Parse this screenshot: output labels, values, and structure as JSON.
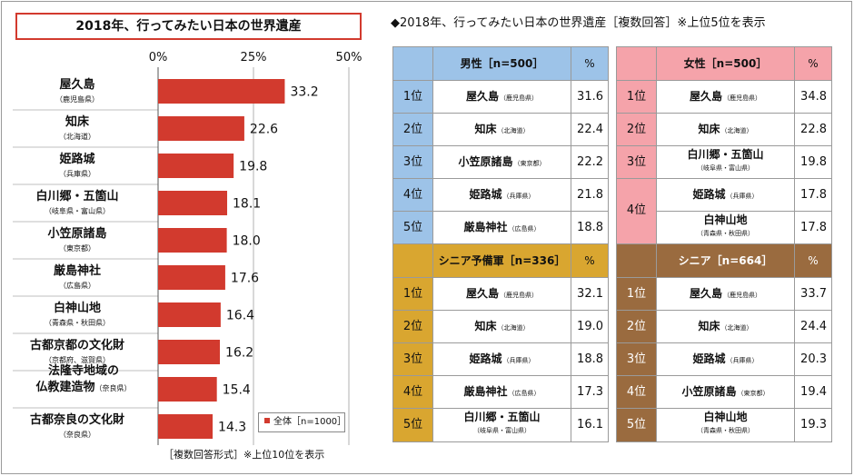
{
  "chart_title": "2018年、行ってみたい日本の世界遺産",
  "chart_note": "［複数回答形式］※上位10位を表示",
  "legend_label": "全体［n=1000］",
  "tables_title": "◆2018年、行ってみたい日本の世界遺産［複数回答］※上位5位を表示",
  "colors": {
    "bar": "#d23a2e",
    "male": "#9dc3e8",
    "female": "#f5a3aa",
    "senior_reserve": "#d9a630",
    "senior": "#9a6b3f"
  },
  "chart_data": {
    "type": "bar",
    "orientation": "horizontal",
    "categories": [
      {
        "name": "屋久島",
        "pref": "（鹿児島県）"
      },
      {
        "name": "知床",
        "pref": "（北海道）"
      },
      {
        "name": "姫路城",
        "pref": "（兵庫県）"
      },
      {
        "name": "白川郷・五箇山",
        "pref": "（岐阜県・富山県）"
      },
      {
        "name": "小笠原諸島",
        "pref": "（東京都）"
      },
      {
        "name": "厳島神社",
        "pref": "（広島県）"
      },
      {
        "name": "白神山地",
        "pref": "（青森県・秋田県）"
      },
      {
        "name": "古都京都の文化財",
        "pref": "（京都府、滋賀県）"
      },
      {
        "name": "法隆寺地域の",
        "name2": "仏教建造物",
        "pref": "（奈良県）"
      },
      {
        "name": "古都奈良の文化財",
        "pref": "（奈良県）"
      }
    ],
    "values": [
      33.2,
      22.6,
      19.8,
      18.1,
      18.0,
      17.6,
      16.4,
      16.2,
      15.4,
      14.3
    ],
    "value_labels": [
      "33.2",
      "22.6",
      "19.8",
      "18.1",
      "18.0",
      "17.6",
      "16.4",
      "16.2",
      "15.4",
      "14.3"
    ],
    "series_name": "全体［n=1000］",
    "xlim": [
      0,
      50
    ],
    "x_ticks": [
      "0%",
      "25%",
      "50%"
    ]
  },
  "tables": {
    "male": {
      "header": "男性［n=500］",
      "pct_header": "%",
      "rows": [
        {
          "rank": "1位",
          "site": "屋久島",
          "pref": "（鹿児島県）",
          "value": "31.6"
        },
        {
          "rank": "2位",
          "site": "知床",
          "pref": "（北海道）",
          "value": "22.4"
        },
        {
          "rank": "3位",
          "site": "小笠原諸島",
          "pref": "（東京都）",
          "value": "22.2"
        },
        {
          "rank": "4位",
          "site": "姫路城",
          "pref": "（兵庫県）",
          "value": "21.8"
        },
        {
          "rank": "5位",
          "site": "厳島神社",
          "pref": "（広島県）",
          "value": "18.8"
        }
      ]
    },
    "female": {
      "header": "女性［n=500］",
      "pct_header": "%",
      "rows": [
        {
          "rank": "1位",
          "site": "屋久島",
          "pref": "（鹿児島県）",
          "value": "34.8"
        },
        {
          "rank": "2位",
          "site": "知床",
          "pref": "（北海道）",
          "value": "22.8"
        },
        {
          "rank": "3位",
          "site": "白川郷・五箇山",
          "pref": "（岐阜県・富山県）",
          "value": "19.8"
        },
        {
          "rank": "4位",
          "site": "姫路城",
          "pref": "（兵庫県）",
          "value": "17.8"
        },
        {
          "rank": "4位",
          "site": "白神山地",
          "pref": "（青森県・秋田県）",
          "value": "17.8"
        }
      ]
    },
    "senior_reserve": {
      "header": "シニア予備軍［n=336］",
      "pct_header": "%",
      "rows": [
        {
          "rank": "1位",
          "site": "屋久島",
          "pref": "（鹿児島県）",
          "value": "32.1"
        },
        {
          "rank": "2位",
          "site": "知床",
          "pref": "（北海道）",
          "value": "19.0"
        },
        {
          "rank": "3位",
          "site": "姫路城",
          "pref": "（兵庫県）",
          "value": "18.8"
        },
        {
          "rank": "4位",
          "site": "厳島神社",
          "pref": "（広島県）",
          "value": "17.3"
        },
        {
          "rank": "5位",
          "site": "白川郷・五箇山",
          "pref": "（岐阜県・富山県）",
          "value": "16.1"
        }
      ]
    },
    "senior": {
      "header": "シニア［n=664］",
      "pct_header": "%",
      "rows": [
        {
          "rank": "1位",
          "site": "屋久島",
          "pref": "（鹿児島県）",
          "value": "33.7"
        },
        {
          "rank": "2位",
          "site": "知床",
          "pref": "（北海道）",
          "value": "24.4"
        },
        {
          "rank": "3位",
          "site": "姫路城",
          "pref": "（兵庫県）",
          "value": "20.3"
        },
        {
          "rank": "4位",
          "site": "小笠原諸島",
          "pref": "（東京都）",
          "value": "19.4"
        },
        {
          "rank": "5位",
          "site": "白神山地",
          "pref": "（青森県・秋田県）",
          "value": "19.3"
        }
      ]
    }
  }
}
